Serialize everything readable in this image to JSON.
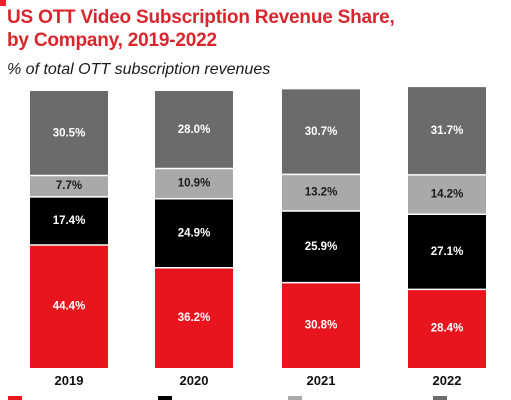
{
  "title_line1": "US OTT Video Subscription Revenue Share,",
  "title_line2": "by Company, 2019-2022",
  "subtitle": "% of total OTT subscription revenues",
  "chart_data": {
    "type": "bar",
    "stacked": true,
    "title": "US OTT Video Subscription Revenue Share, by Company, 2019-2022",
    "subtitle": "% of total OTT subscription revenues",
    "categories": [
      "2019",
      "2020",
      "2021",
      "2022"
    ],
    "series": [
      {
        "values": [
          44.4,
          36.2,
          30.8,
          28.4
        ],
        "color": "#e8151e"
      },
      {
        "values": [
          17.4,
          24.9,
          25.9,
          27.1
        ],
        "color": "#000000"
      },
      {
        "values": [
          7.7,
          10.9,
          13.2,
          14.2
        ],
        "color": "#a9a9a9"
      },
      {
        "values": [
          30.5,
          28.0,
          30.7,
          31.7
        ],
        "color": "#6b6b6b"
      }
    ],
    "data_labels": true,
    "label_suffix": "%",
    "ylim": [
      0,
      100
    ],
    "grid": false,
    "legend": "bottom"
  }
}
